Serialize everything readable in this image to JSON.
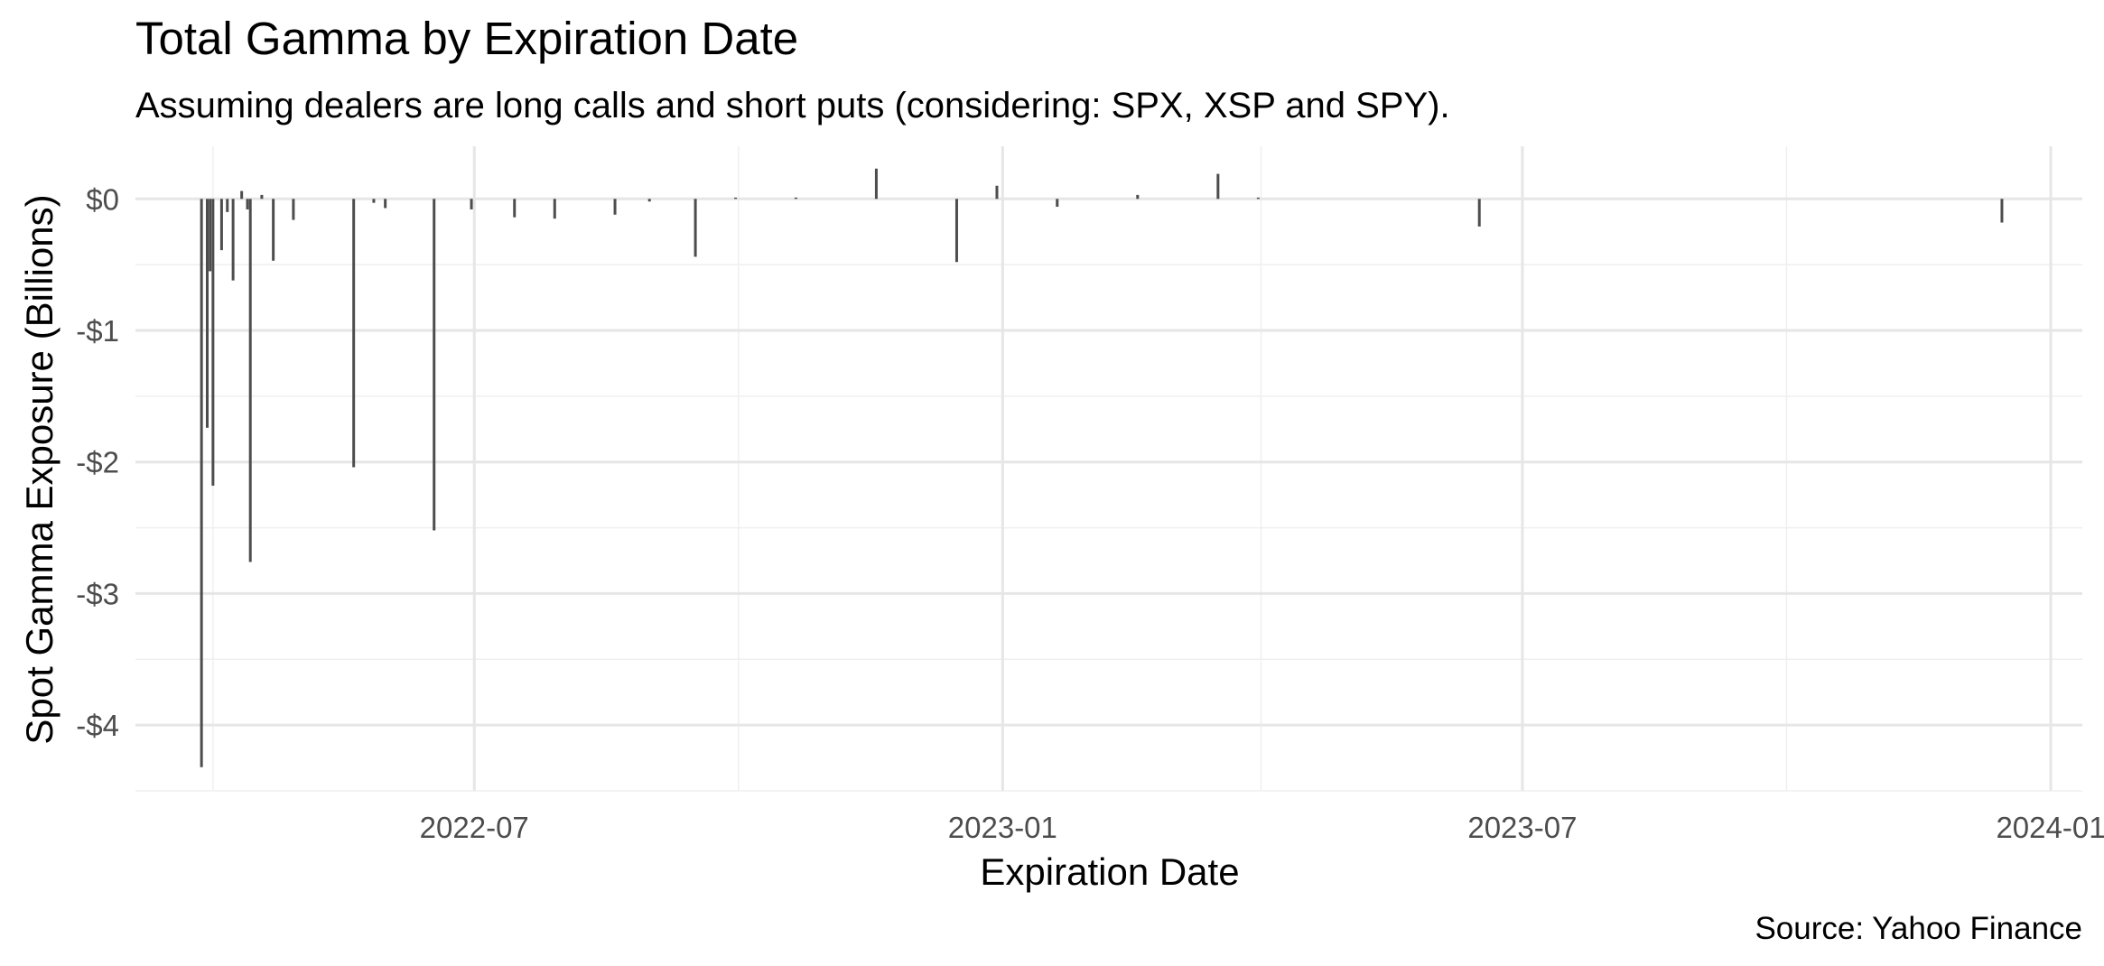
{
  "chart_data": {
    "type": "bar",
    "title": "Total Gamma by Expiration Date",
    "subtitle": "Assuming dealers are long calls and short puts (considering: SPX, XSP and SPY).",
    "xlabel": "Expiration Date",
    "ylabel": "Spot Gamma Exposure (Billions)",
    "caption": "Source: Yahoo Finance",
    "xlim": [
      "2022-03-05",
      "2024-01-12"
    ],
    "ylim": [
      -4.5,
      0.4
    ],
    "x_ticks": [
      {
        "date": "2022-07-01",
        "label": "2022-07"
      },
      {
        "date": "2023-01-01",
        "label": "2023-01"
      },
      {
        "date": "2023-07-01",
        "label": "2023-07"
      },
      {
        "date": "2024-01-01",
        "label": "2024-01"
      }
    ],
    "x_minor_ticks": [
      "2022-04-01",
      "2022-10-01",
      "2023-04-01",
      "2023-10-01"
    ],
    "y_ticks": [
      {
        "value": 0,
        "label": "$0"
      },
      {
        "value": -1,
        "label": "-$1"
      },
      {
        "value": -2,
        "label": "-$2"
      },
      {
        "value": -3,
        "label": "-$3"
      },
      {
        "value": -4,
        "label": "-$4"
      }
    ],
    "y_minor_ticks": [
      -0.5,
      -1.5,
      -2.5,
      -3.5,
      -4.5
    ],
    "grid": true,
    "legend": "none",
    "bar_color": "#4d4d4d",
    "points": [
      {
        "x": "2022-03-28",
        "y": -4.32
      },
      {
        "x": "2022-03-30",
        "y": -1.74
      },
      {
        "x": "2022-03-31",
        "y": -0.55
      },
      {
        "x": "2022-04-01",
        "y": -2.18
      },
      {
        "x": "2022-04-04",
        "y": -0.39
      },
      {
        "x": "2022-04-06",
        "y": -0.1
      },
      {
        "x": "2022-04-08",
        "y": -0.62
      },
      {
        "x": "2022-04-11",
        "y": 0.06
      },
      {
        "x": "2022-04-13",
        "y": -0.08
      },
      {
        "x": "2022-04-14",
        "y": -2.76
      },
      {
        "x": "2022-04-18",
        "y": 0.03
      },
      {
        "x": "2022-04-22",
        "y": -0.47
      },
      {
        "x": "2022-04-29",
        "y": -0.16
      },
      {
        "x": "2022-05-20",
        "y": -2.04
      },
      {
        "x": "2022-05-27",
        "y": -0.03
      },
      {
        "x": "2022-05-31",
        "y": -0.07
      },
      {
        "x": "2022-06-17",
        "y": -2.52
      },
      {
        "x": "2022-06-30",
        "y": -0.08
      },
      {
        "x": "2022-07-15",
        "y": -0.14
      },
      {
        "x": "2022-07-29",
        "y": -0.15
      },
      {
        "x": "2022-08-19",
        "y": -0.12
      },
      {
        "x": "2022-08-31",
        "y": -0.02
      },
      {
        "x": "2022-09-16",
        "y": -0.44
      },
      {
        "x": "2022-09-30",
        "y": 0.01
      },
      {
        "x": "2022-10-21",
        "y": 0.01
      },
      {
        "x": "2022-11-18",
        "y": 0.23
      },
      {
        "x": "2022-12-16",
        "y": -0.48
      },
      {
        "x": "2022-12-30",
        "y": 0.1
      },
      {
        "x": "2023-01-20",
        "y": -0.06
      },
      {
        "x": "2023-02-17",
        "y": 0.03
      },
      {
        "x": "2023-03-17",
        "y": 0.19
      },
      {
        "x": "2023-03-31",
        "y": 0.01
      },
      {
        "x": "2023-06-16",
        "y": -0.21
      },
      {
        "x": "2023-12-15",
        "y": -0.18
      }
    ]
  }
}
